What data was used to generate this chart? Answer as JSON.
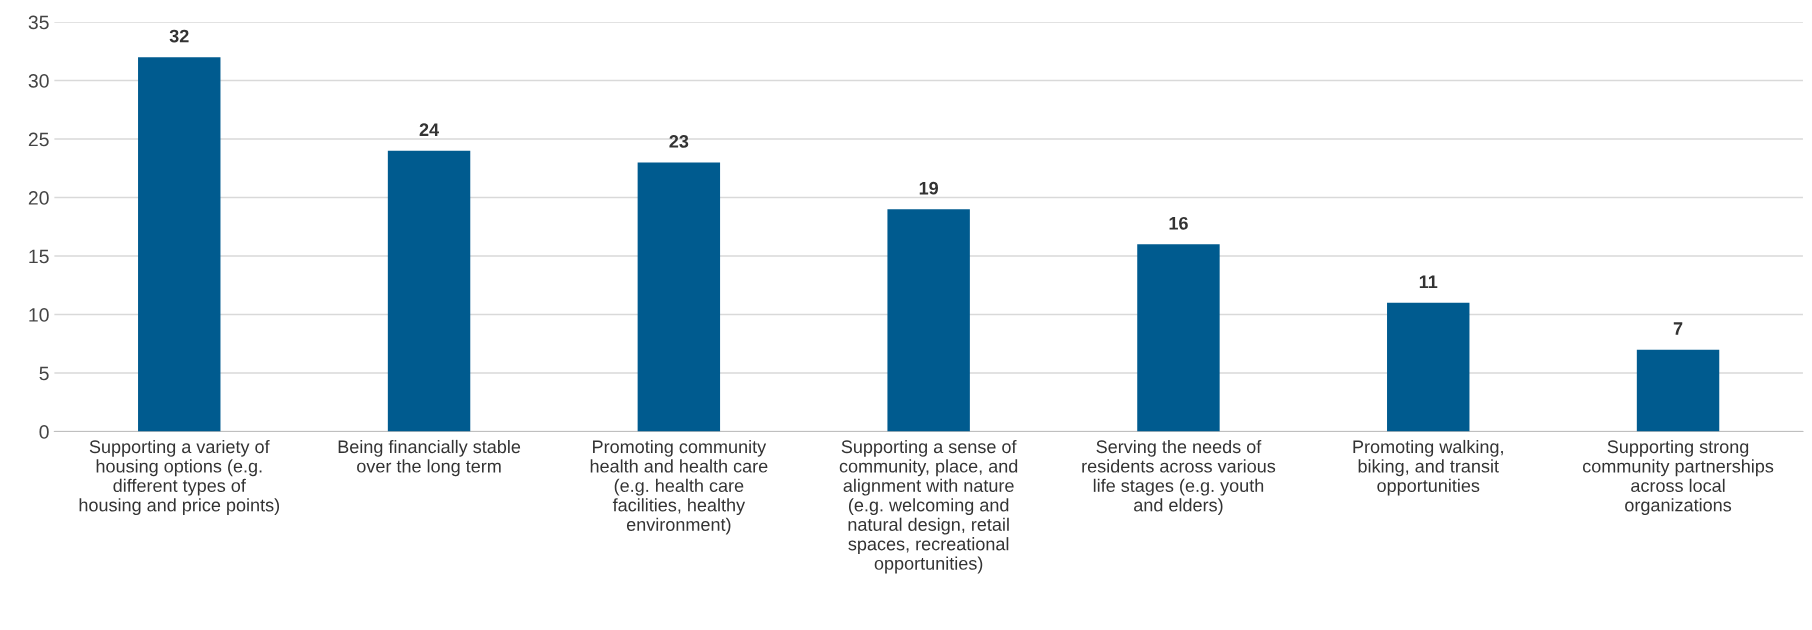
{
  "chart_data": {
    "type": "bar",
    "categories": [
      "Supporting a variety of\nhousing options (e.g.\ndifferent types of\nhousing and price points)",
      "Being financially stable\nover the long term",
      "Promoting community\nhealth and health care\n(e.g. health care\nfacilities, healthy\nenvironment)",
      "Supporting a sense of\ncommunity, place, and\nalignment with nature\n(e.g. welcoming and\nnatural design, retail\nspaces, recreational\nopportunities)",
      "Serving the needs of\nresidents across various\nlife stages (e.g. youth\nand elders)",
      "Promoting walking,\nbiking, and transit\nopportunities",
      "Supporting strong\ncommunity partnerships\nacross local\norganizations"
    ],
    "values": [
      32,
      24,
      23,
      19,
      16,
      11,
      7
    ],
    "color": "#005b8f",
    "ylim": [
      0,
      35
    ],
    "yticks": [
      0,
      5,
      10,
      15,
      20,
      25,
      30,
      35
    ],
    "grid": "y",
    "data_labels": true
  }
}
